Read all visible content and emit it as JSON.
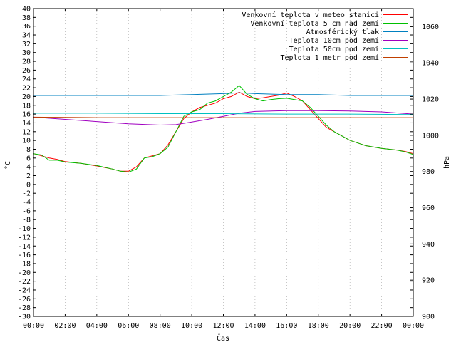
{
  "chart_data": {
    "type": "line",
    "xlabel": "Čas",
    "ylabel_left": "°C",
    "ylabel_right": "hPa",
    "x_ticks": [
      "00:00",
      "02:00",
      "04:00",
      "06:00",
      "08:00",
      "10:00",
      "12:00",
      "14:00",
      "16:00",
      "18:00",
      "20:00",
      "22:00",
      "00:00"
    ],
    "x_range_hours": [
      0,
      24
    ],
    "y_left_range": [
      -30,
      40
    ],
    "y_left_step": 2,
    "y_right_range": [
      900,
      1070
    ],
    "y_right_ticks": [
      900,
      920,
      940,
      960,
      980,
      1000,
      1020,
      1040,
      1060
    ],
    "legend_position": "top-right",
    "series": [
      {
        "name": "Venkovní teplota v meteo stanici",
        "color": "#ff0000",
        "axis": "left",
        "x": [
          0,
          0.5,
          1,
          1.5,
          2,
          3,
          4,
          5,
          5.5,
          6,
          6.5,
          7,
          7.5,
          8,
          8.5,
          9,
          9.5,
          10,
          10.5,
          11,
          11.5,
          12,
          12.5,
          13,
          13.5,
          14,
          14.5,
          15,
          15.5,
          16,
          16.5,
          17,
          17.5,
          18,
          18.5,
          19,
          20,
          21,
          22,
          23,
          23.5,
          24
        ],
        "values": [
          7,
          6.5,
          6,
          5.7,
          5.2,
          4.8,
          4.2,
          3.5,
          3,
          3,
          4,
          6,
          6.5,
          7,
          9,
          12,
          15,
          16.5,
          17.5,
          18,
          18.5,
          19.5,
          20,
          21,
          20,
          19.5,
          19.7,
          20,
          20.3,
          20.8,
          20,
          19,
          17,
          15,
          13,
          12,
          10,
          8.8,
          8.2,
          7.8,
          7.5,
          7
        ]
      },
      {
        "name": "Venkovní teplota 5 cm nad zemí",
        "color": "#00c000",
        "axis": "left",
        "x": [
          0,
          0.5,
          1,
          1.5,
          2,
          3,
          4,
          5,
          5.5,
          6,
          6.5,
          7,
          7.5,
          8,
          8.5,
          9,
          9.5,
          10,
          10.5,
          11,
          11.5,
          12,
          12.5,
          13,
          13.5,
          14,
          14.5,
          15,
          15.5,
          16,
          16.5,
          17,
          17.5,
          18,
          18.5,
          19,
          20,
          21,
          22,
          23,
          23.5,
          24
        ],
        "values": [
          7,
          6.7,
          5.5,
          5.5,
          5.1,
          4.8,
          4.3,
          3.5,
          3,
          2.8,
          3.5,
          6,
          6.3,
          7,
          8.5,
          12,
          15.5,
          16.5,
          17,
          18.5,
          19,
          20,
          21,
          22.5,
          20.5,
          19.5,
          19,
          19.3,
          19.5,
          19.6,
          19.3,
          19,
          17.5,
          15.5,
          13.5,
          12,
          10,
          8.8,
          8.2,
          7.8,
          7.4,
          6.8
        ]
      },
      {
        "name": "Atmosférický tlak",
        "color": "#0080c0",
        "axis": "right",
        "x": [
          0,
          2,
          4,
          6,
          8,
          10,
          12,
          13,
          14,
          16,
          18,
          20,
          22,
          24
        ],
        "values": [
          1022,
          1022,
          1022,
          1022,
          1022,
          1022.5,
          1023,
          1023.5,
          1023,
          1022.5,
          1022.5,
          1022,
          1022,
          1022
        ]
      },
      {
        "name": "Teplota 10cm pod zemí",
        "color": "#a000c0",
        "axis": "left",
        "x": [
          0,
          2,
          4,
          6,
          8,
          9,
          10,
          11,
          12,
          13,
          14,
          16,
          18,
          20,
          22,
          24
        ],
        "values": [
          15.3,
          14.8,
          14.3,
          13.8,
          13.5,
          13.6,
          14.2,
          14.8,
          15.5,
          16.2,
          16.6,
          16.8,
          16.8,
          16.7,
          16.5,
          16
        ]
      },
      {
        "name": "Teplota 50cm pod zemí",
        "color": "#00c0c0",
        "axis": "left",
        "x": [
          0,
          4,
          8,
          12,
          16,
          20,
          24
        ],
        "values": [
          16.2,
          16.2,
          16.1,
          16.1,
          16,
          16,
          15.9
        ]
      },
      {
        "name": "Teplota 1 metr pod zemí",
        "color": "#c04000",
        "axis": "left",
        "x": [
          0,
          4,
          8,
          12,
          16,
          20,
          24
        ],
        "values": [
          15.3,
          15.2,
          15.2,
          15.2,
          15.2,
          15.2,
          15.2
        ]
      }
    ]
  }
}
